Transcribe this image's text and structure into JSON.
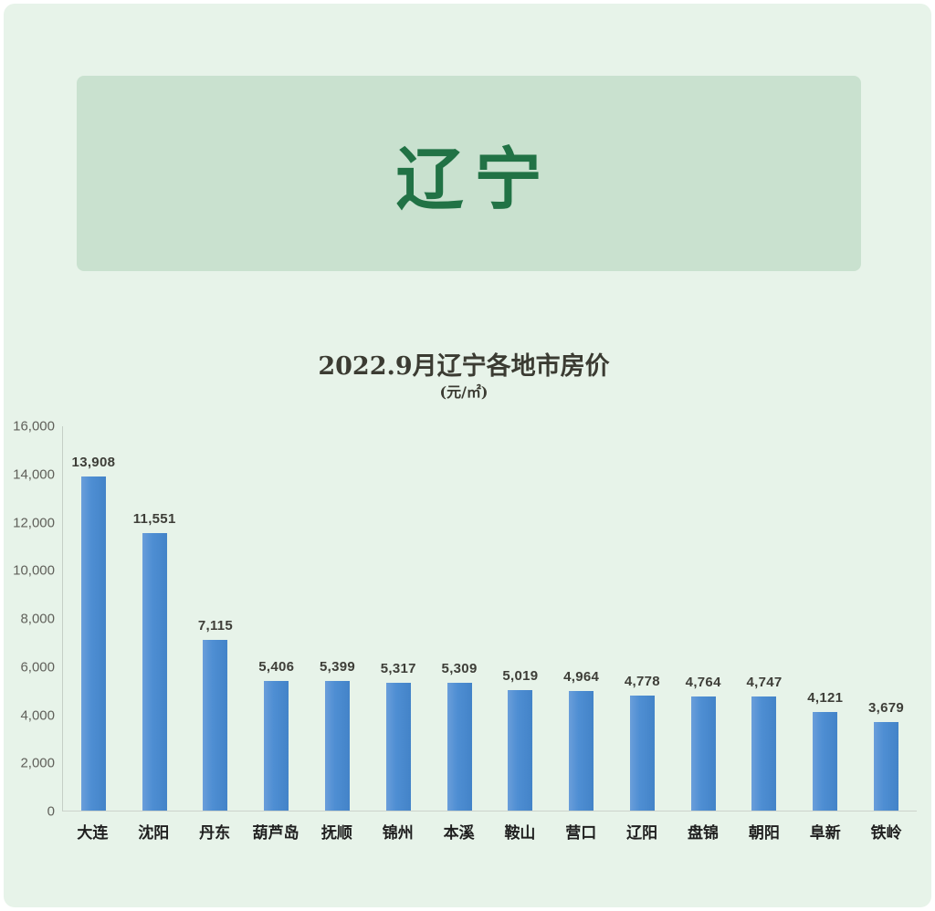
{
  "header": {
    "title": "辽宁"
  },
  "chart_data": {
    "type": "bar",
    "title": "2022.9月辽宁各地市房价",
    "subtitle": "(元/㎡)",
    "categories": [
      "大连",
      "沈阳",
      "丹东",
      "葫芦岛",
      "抚顺",
      "锦州",
      "本溪",
      "鞍山",
      "营口",
      "辽阳",
      "盘锦",
      "朝阳",
      "阜新",
      "铁岭"
    ],
    "values": [
      13908,
      11551,
      7115,
      5406,
      5399,
      5317,
      5309,
      5019,
      4964,
      4778,
      4764,
      4747,
      4121,
      3679
    ],
    "value_labels": [
      "13,908",
      "11,551",
      "7,115",
      "5,406",
      "5,399",
      "5,317",
      "5,309",
      "5,019",
      "4,964",
      "4,778",
      "4,764",
      "4,747",
      "4,121",
      "3,679"
    ],
    "xlabel": "",
    "ylabel": "",
    "ylim": [
      0,
      16000
    ],
    "y_tick_step": 2000,
    "y_tick_labels": [
      "16,000",
      "14,000",
      "12,000",
      "10,000",
      "8,000",
      "6,000",
      "4,000",
      "2,000",
      "0"
    ],
    "grid": false,
    "legend_position": "none"
  },
  "colors": {
    "page_background": "#ffffff",
    "panel_background": "#e7f3e9",
    "card_background": "#c9e1cf",
    "province_text": "#217245",
    "bar_blue": "#4e8ed3",
    "title_text": "#3b3b32",
    "tick_text": "#60605a",
    "category_text": "#1f1f1f"
  }
}
